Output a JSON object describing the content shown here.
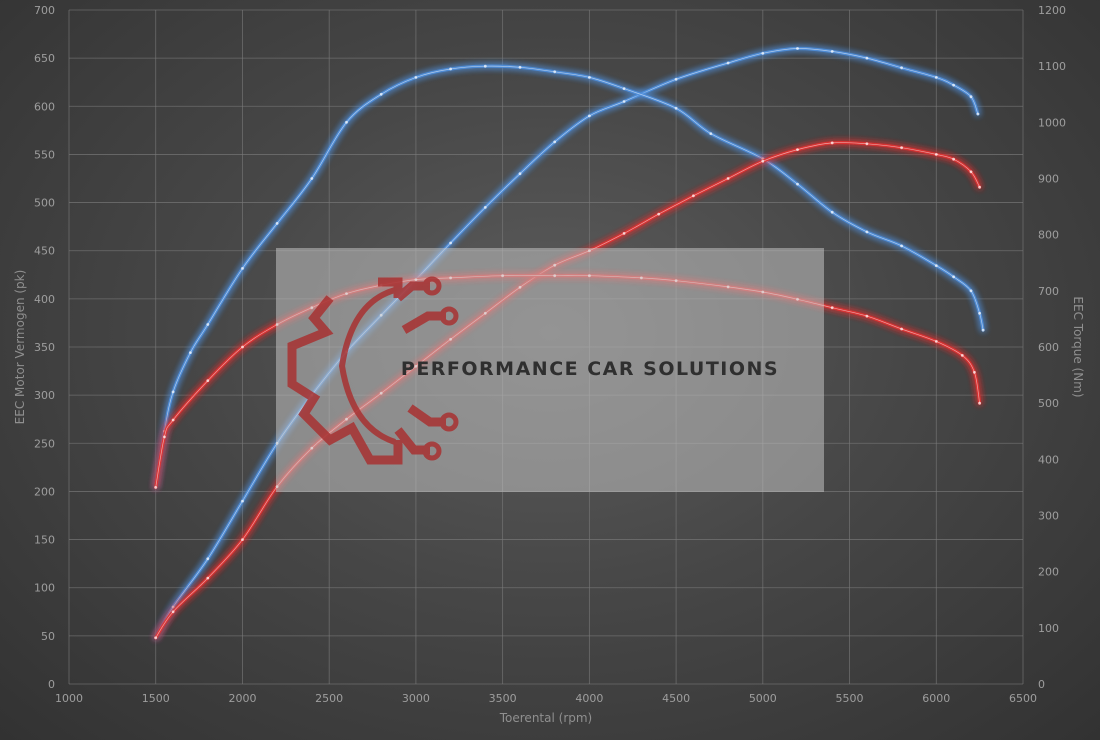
{
  "chart_data": {
    "type": "line",
    "xlabel": "Toerental (rpm)",
    "ylabel_left": "EEC Motor Vermogen (pk)",
    "ylabel_right": "EEC Torque (Nm)",
    "xlim": [
      1000,
      6500
    ],
    "ylim_left": [
      0,
      700
    ],
    "ylim_right": [
      0,
      1200
    ],
    "x_ticks": [
      1000,
      1500,
      2000,
      2500,
      3000,
      3500,
      4000,
      4500,
      5000,
      5500,
      6000,
      6500
    ],
    "y_left_ticks": [
      0,
      50,
      100,
      150,
      200,
      250,
      300,
      350,
      400,
      450,
      500,
      550,
      600,
      650,
      700
    ],
    "y_right_ticks": [
      0,
      100,
      200,
      300,
      400,
      500,
      600,
      700,
      800,
      900,
      1000,
      1100,
      1200
    ],
    "grid": true,
    "series": [
      {
        "axis": "left",
        "color": "#4f8fdc",
        "points": [
          [
            1500,
            48
          ],
          [
            1600,
            80
          ],
          [
            1800,
            130
          ],
          [
            2000,
            190
          ],
          [
            2200,
            250
          ],
          [
            2400,
            300
          ],
          [
            2600,
            345
          ],
          [
            2800,
            383
          ],
          [
            3000,
            420
          ],
          [
            3200,
            458
          ],
          [
            3400,
            495
          ],
          [
            3600,
            530
          ],
          [
            3800,
            563
          ],
          [
            4000,
            590
          ],
          [
            4200,
            605
          ],
          [
            4500,
            628
          ],
          [
            4800,
            645
          ],
          [
            5000,
            655
          ],
          [
            5200,
            660
          ],
          [
            5400,
            657
          ],
          [
            5600,
            650
          ],
          [
            5800,
            640
          ],
          [
            6000,
            630
          ],
          [
            6100,
            622
          ],
          [
            6200,
            610
          ],
          [
            6240,
            592
          ]
        ]
      },
      {
        "axis": "right",
        "color": "#4f8fdc",
        "points": [
          [
            1500,
            350
          ],
          [
            1550,
            450
          ],
          [
            1600,
            520
          ],
          [
            1700,
            590
          ],
          [
            1800,
            640
          ],
          [
            2000,
            740
          ],
          [
            2200,
            820
          ],
          [
            2400,
            900
          ],
          [
            2600,
            1000
          ],
          [
            2800,
            1050
          ],
          [
            3000,
            1080
          ],
          [
            3200,
            1095
          ],
          [
            3400,
            1100
          ],
          [
            3600,
            1098
          ],
          [
            3800,
            1090
          ],
          [
            4000,
            1080
          ],
          [
            4200,
            1060
          ],
          [
            4500,
            1025
          ],
          [
            4700,
            980
          ],
          [
            5000,
            935
          ],
          [
            5200,
            890
          ],
          [
            5400,
            840
          ],
          [
            5600,
            805
          ],
          [
            5800,
            780
          ],
          [
            6000,
            745
          ],
          [
            6100,
            725
          ],
          [
            6200,
            700
          ],
          [
            6250,
            660
          ],
          [
            6270,
            630
          ]
        ]
      },
      {
        "axis": "left",
        "color": "#e03030",
        "points": [
          [
            1500,
            48
          ],
          [
            1600,
            75
          ],
          [
            1800,
            110
          ],
          [
            2000,
            150
          ],
          [
            2200,
            205
          ],
          [
            2400,
            245
          ],
          [
            2600,
            275
          ],
          [
            2800,
            302
          ],
          [
            3000,
            330
          ],
          [
            3200,
            358
          ],
          [
            3400,
            385
          ],
          [
            3600,
            412
          ],
          [
            3800,
            435
          ],
          [
            4000,
            450
          ],
          [
            4200,
            468
          ],
          [
            4400,
            488
          ],
          [
            4600,
            507
          ],
          [
            4800,
            525
          ],
          [
            5000,
            543
          ],
          [
            5200,
            555
          ],
          [
            5400,
            562
          ],
          [
            5600,
            561
          ],
          [
            5800,
            557
          ],
          [
            6000,
            550
          ],
          [
            6100,
            545
          ],
          [
            6200,
            532
          ],
          [
            6250,
            516
          ]
        ]
      },
      {
        "axis": "right",
        "color": "#e03030",
        "points": [
          [
            1500,
            350
          ],
          [
            1550,
            440
          ],
          [
            1600,
            470
          ],
          [
            1800,
            540
          ],
          [
            2000,
            600
          ],
          [
            2200,
            640
          ],
          [
            2400,
            670
          ],
          [
            2600,
            695
          ],
          [
            2800,
            710
          ],
          [
            3000,
            720
          ],
          [
            3200,
            723
          ],
          [
            3500,
            727
          ],
          [
            3800,
            727
          ],
          [
            4000,
            727
          ],
          [
            4300,
            723
          ],
          [
            4500,
            718
          ],
          [
            4800,
            707
          ],
          [
            5000,
            698
          ],
          [
            5200,
            685
          ],
          [
            5400,
            670
          ],
          [
            5600,
            655
          ],
          [
            5800,
            632
          ],
          [
            6000,
            610
          ],
          [
            6150,
            585
          ],
          [
            6220,
            555
          ],
          [
            6250,
            500
          ]
        ]
      }
    ]
  },
  "watermark": {
    "text": "PERFORMANCE CAR SOLUTIONS",
    "logo_color": "#a83232"
  }
}
